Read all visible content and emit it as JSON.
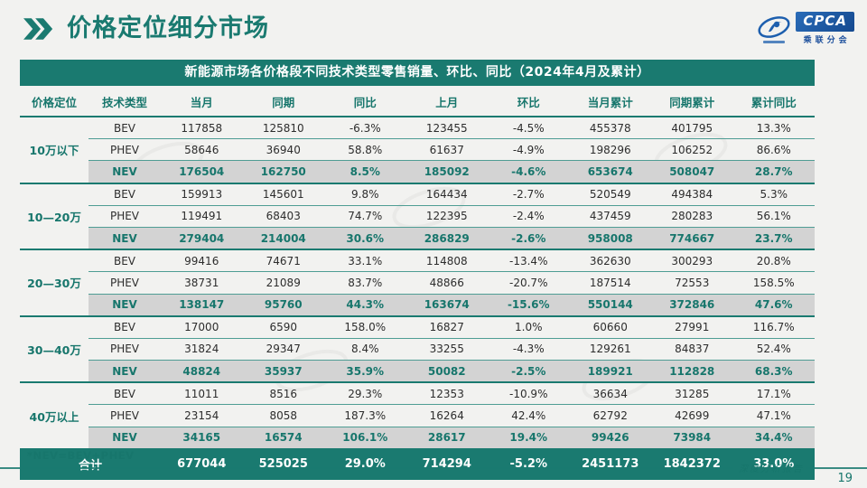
{
  "page": {
    "title": "价格定位细分市场",
    "footnote": "*NEV=BEV+PHEV",
    "footer_label": "深度分析报告",
    "page_number": "19"
  },
  "logo": {
    "brand": "CPCA",
    "sub_label": "乘联分会"
  },
  "colors": {
    "accent": "#1a7a70",
    "nev_row_bg": "#d3d3d3",
    "total_row_bg": "#1a7a70",
    "logo_blue": "#1d5fae"
  },
  "table": {
    "caption": "新能源市场各价格段不同技术类型零售销量、环比、同比（2024年4月及累计）",
    "headers": [
      "价格定位",
      "技术类型",
      "当月",
      "同期",
      "同比",
      "上月",
      "环比",
      "当月累计",
      "同期累计",
      "累计同比"
    ],
    "groups": [
      {
        "label": "10万以下",
        "rows": [
          {
            "type": "BEV",
            "cells": [
              "117858",
              "125810",
              "-6.3%",
              "123455",
              "-4.5%",
              "455378",
              "401795",
              "13.3%"
            ]
          },
          {
            "type": "PHEV",
            "cells": [
              "58646",
              "36940",
              "58.8%",
              "61637",
              "-4.9%",
              "198296",
              "106252",
              "86.6%"
            ]
          },
          {
            "type": "NEV",
            "cells": [
              "176504",
              "162750",
              "8.5%",
              "185092",
              "-4.6%",
              "653674",
              "508047",
              "28.7%"
            ]
          }
        ]
      },
      {
        "label": "10—20万",
        "rows": [
          {
            "type": "BEV",
            "cells": [
              "159913",
              "145601",
              "9.8%",
              "164434",
              "-2.7%",
              "520549",
              "494384",
              "5.3%"
            ]
          },
          {
            "type": "PHEV",
            "cells": [
              "119491",
              "68403",
              "74.7%",
              "122395",
              "-2.4%",
              "437459",
              "280283",
              "56.1%"
            ]
          },
          {
            "type": "NEV",
            "cells": [
              "279404",
              "214004",
              "30.6%",
              "286829",
              "-2.6%",
              "958008",
              "774667",
              "23.7%"
            ]
          }
        ]
      },
      {
        "label": "20—30万",
        "rows": [
          {
            "type": "BEV",
            "cells": [
              "99416",
              "74671",
              "33.1%",
              "114808",
              "-13.4%",
              "362630",
              "300293",
              "20.8%"
            ]
          },
          {
            "type": "PHEV",
            "cells": [
              "38731",
              "21089",
              "83.7%",
              "48866",
              "-20.7%",
              "187514",
              "72553",
              "158.5%"
            ]
          },
          {
            "type": "NEV",
            "cells": [
              "138147",
              "95760",
              "44.3%",
              "163674",
              "-15.6%",
              "550144",
              "372846",
              "47.6%"
            ]
          }
        ]
      },
      {
        "label": "30—40万",
        "rows": [
          {
            "type": "BEV",
            "cells": [
              "17000",
              "6590",
              "158.0%",
              "16827",
              "1.0%",
              "60660",
              "27991",
              "116.7%"
            ]
          },
          {
            "type": "PHEV",
            "cells": [
              "31824",
              "29347",
              "8.4%",
              "33255",
              "-4.3%",
              "129261",
              "84837",
              "52.4%"
            ]
          },
          {
            "type": "NEV",
            "cells": [
              "48824",
              "35937",
              "35.9%",
              "50082",
              "-2.5%",
              "189921",
              "112828",
              "68.3%"
            ]
          }
        ]
      },
      {
        "label": "40万以上",
        "rows": [
          {
            "type": "BEV",
            "cells": [
              "11011",
              "8516",
              "29.3%",
              "12353",
              "-10.9%",
              "36634",
              "31285",
              "17.1%"
            ]
          },
          {
            "type": "PHEV",
            "cells": [
              "23154",
              "8058",
              "187.3%",
              "16264",
              "42.4%",
              "62792",
              "42699",
              "47.1%"
            ]
          },
          {
            "type": "NEV",
            "cells": [
              "34165",
              "16574",
              "106.1%",
              "28617",
              "19.4%",
              "99426",
              "73984",
              "34.4%"
            ]
          }
        ]
      }
    ],
    "total": {
      "label": "合计",
      "cells": [
        "677044",
        "525025",
        "29.0%",
        "714294",
        "-5.2%",
        "2451173",
        "1842372",
        "33.0%"
      ]
    }
  }
}
